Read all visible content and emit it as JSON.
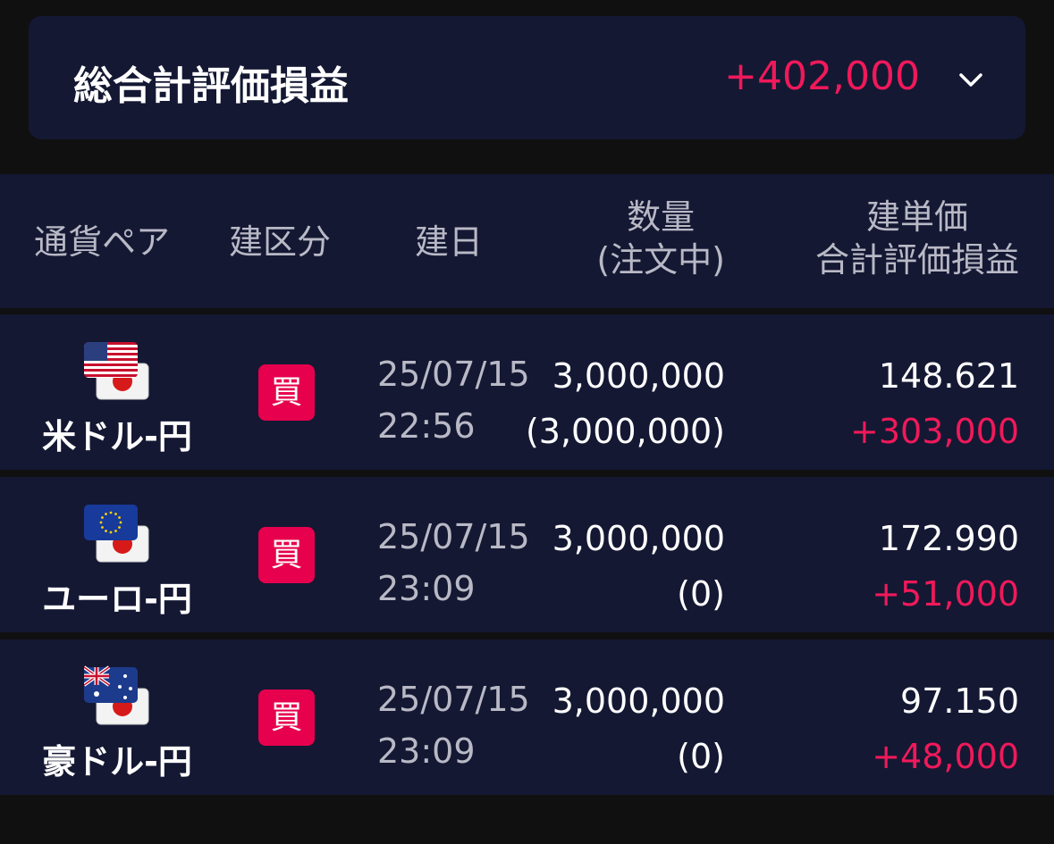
{
  "summary": {
    "title": "総合計評価損益",
    "total": "+402,000",
    "expand_icon": "chevron-down-icon"
  },
  "header": {
    "pair": "通貨ペア",
    "side": "建区分",
    "date": "建日",
    "qty_line1": "数量",
    "qty_line2": "(注文中)",
    "price_line1": "建単価",
    "price_line2": "合計評価損益"
  },
  "colors": {
    "background": "#101010",
    "panel": "#141833",
    "profit": "#f0195a",
    "buy_badge": "#e6004d"
  },
  "rows": [
    {
      "pair": "米ドル-円",
      "flags": [
        "us-flag-icon",
        "jp-flag-icon"
      ],
      "side": "買",
      "date": "25/07/15",
      "time": "22:56",
      "qty": "3,000,000",
      "qty_pending": "(3,000,000)",
      "price": "148.621",
      "pl": "+303,000"
    },
    {
      "pair": "ユーロ-円",
      "flags": [
        "eu-flag-icon",
        "jp-flag-icon"
      ],
      "side": "買",
      "date": "25/07/15",
      "time": "23:09",
      "qty": "3,000,000",
      "qty_pending": "(0)",
      "price": "172.990",
      "pl": "+51,000"
    },
    {
      "pair": "豪ドル-円",
      "flags": [
        "au-flag-icon",
        "jp-flag-icon"
      ],
      "side": "買",
      "date": "25/07/15",
      "time": "23:09",
      "qty": "3,000,000",
      "qty_pending": "(0)",
      "price": "97.150",
      "pl": "+48,000"
    }
  ]
}
